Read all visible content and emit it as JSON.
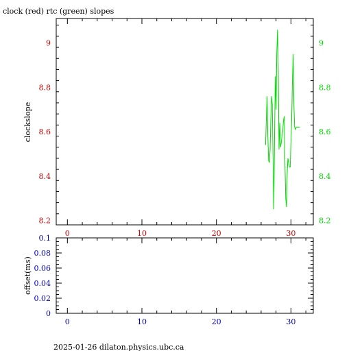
{
  "title": "clock (red) rtc (green) slopes",
  "footer": "2025-01-26  dilaton.physics.ubc.ca",
  "colors": {
    "red": "#cc0000",
    "green": "#00dd00",
    "blue": "#0000cc",
    "axis": "#000000"
  },
  "chart_data": [
    {
      "type": "line",
      "title": "clock (red) rtc (green) slopes",
      "ylabel": "clockslope",
      "xlim": [
        -1.5,
        33
      ],
      "ylim": [
        8.18,
        9.11
      ],
      "x_ticks": [
        0,
        10,
        20,
        30
      ],
      "y_ticks": [
        8.2,
        8.4,
        8.6,
        8.8,
        9
      ],
      "x_tick_labels": [
        "0",
        "10",
        "20",
        "30"
      ],
      "y_tick_labels_left": [
        "8.2",
        "8.4",
        "8.6",
        "8.8",
        "9"
      ],
      "y_tick_labels_right": [
        "8.2",
        "8.4",
        "8.6",
        "8.8",
        "9"
      ],
      "grid": false,
      "series": [
        {
          "name": "rtc",
          "color": "#00dd00",
          "x": [
            26.6,
            26.7,
            26.8,
            26.9,
            27.0,
            27.1,
            27.2,
            27.3,
            27.4,
            27.5,
            27.6,
            27.7,
            27.8,
            27.9,
            28.0,
            28.1,
            28.2,
            28.3,
            28.4,
            28.5,
            28.6,
            28.7,
            28.8,
            28.9,
            29.0,
            29.1,
            29.2,
            29.3,
            29.4,
            29.5,
            29.6,
            29.7,
            29.8,
            29.9,
            30.0,
            30.1,
            30.2,
            30.3,
            30.4,
            30.5,
            30.6,
            30.7,
            30.8,
            30.9,
            31.0,
            31.1,
            31.2
          ],
          "y": [
            8.54,
            8.66,
            8.76,
            8.58,
            8.47,
            8.46,
            8.52,
            8.65,
            8.76,
            8.72,
            8.48,
            8.25,
            8.58,
            8.85,
            8.7,
            8.95,
            9.06,
            8.88,
            8.52,
            8.64,
            8.53,
            8.55,
            8.58,
            8.6,
            8.65,
            8.67,
            8.45,
            8.3,
            8.26,
            8.42,
            8.48,
            8.46,
            8.44,
            8.44,
            8.55,
            8.66,
            8.84,
            8.95,
            8.72,
            8.62,
            8.61,
            8.62,
            8.62,
            8.62,
            8.62,
            8.62,
            8.62
          ]
        }
      ]
    },
    {
      "type": "line",
      "ylabel": "offset(ms)",
      "xlim": [
        -1.5,
        33
      ],
      "ylim": [
        0,
        0.1
      ],
      "x_ticks": [
        0,
        10,
        20,
        30
      ],
      "y_ticks": [
        0,
        0.02,
        0.04,
        0.06,
        0.08,
        0.1
      ],
      "x_tick_labels": [
        "0",
        "10",
        "20",
        "30"
      ],
      "y_tick_labels": [
        "0",
        "0.02",
        "0.04",
        "0.06",
        "0.08",
        "0.1"
      ],
      "grid": false,
      "series": []
    }
  ]
}
